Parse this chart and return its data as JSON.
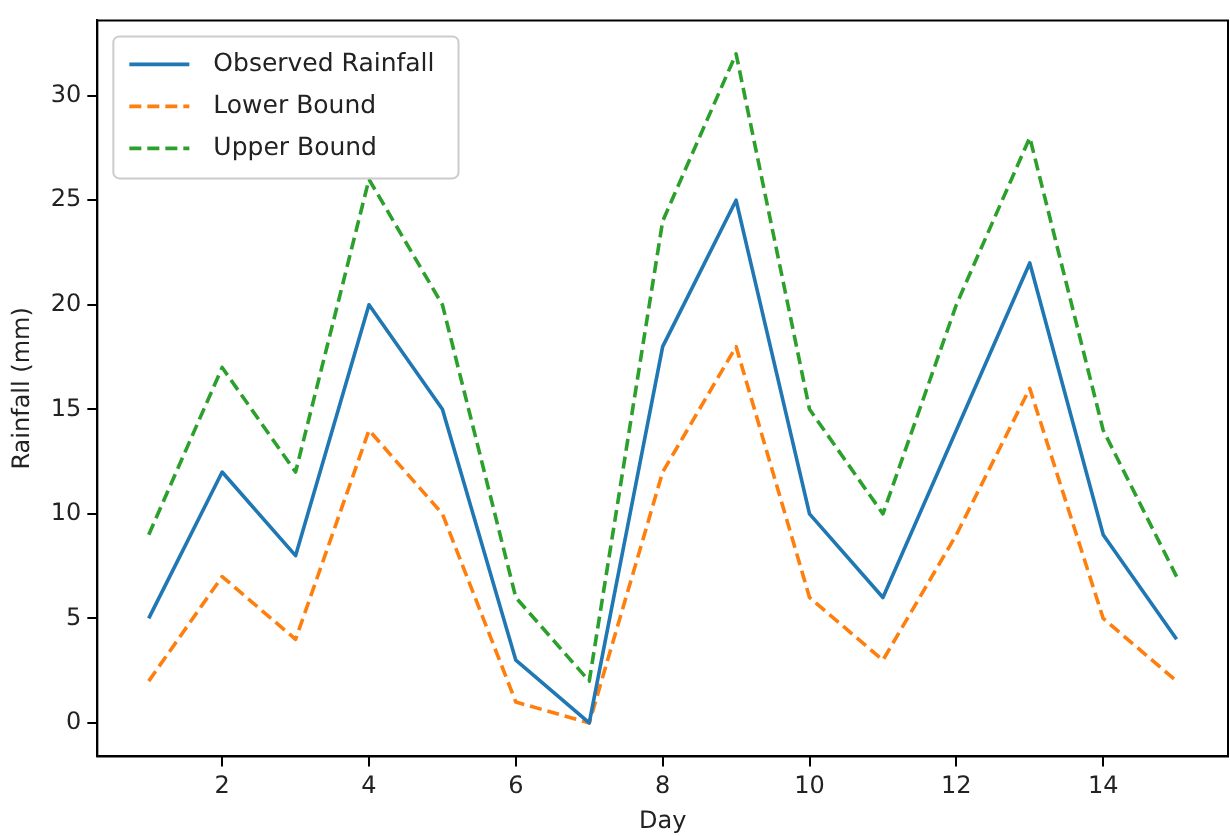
{
  "chart_data": {
    "type": "line",
    "xlabel": "Day",
    "ylabel": "Rainfall (mm)",
    "x": [
      1,
      2,
      3,
      4,
      5,
      6,
      7,
      8,
      9,
      10,
      11,
      12,
      13,
      14,
      15
    ],
    "series": [
      {
        "name": "Observed Rainfall",
        "color": "#1f77b4",
        "line_style": "solid",
        "values": [
          5,
          12,
          8,
          20,
          15,
          3,
          0,
          18,
          25,
          10,
          6,
          14,
          22,
          9,
          4
        ]
      },
      {
        "name": "Lower Bound",
        "color": "#ff7f0e",
        "line_style": "dashed",
        "values": [
          2,
          7,
          4,
          14,
          10,
          1,
          0,
          12,
          18,
          6,
          3,
          9,
          16,
          5,
          2
        ]
      },
      {
        "name": "Upper Bound",
        "color": "#2ca02c",
        "line_style": "dashed",
        "values": [
          9,
          17,
          12,
          26,
          20,
          6,
          2,
          24,
          32,
          15,
          10,
          20,
          28,
          14,
          7
        ]
      }
    ],
    "xlim": [
      0.3,
      15.7
    ],
    "ylim": [
      -1.6,
      33.6
    ],
    "xticks": [
      2,
      4,
      6,
      8,
      10,
      12,
      14
    ],
    "yticks": [
      0,
      5,
      10,
      15,
      20,
      25,
      30
    ],
    "grid": false,
    "legend": "top left",
    "marker": "none"
  }
}
